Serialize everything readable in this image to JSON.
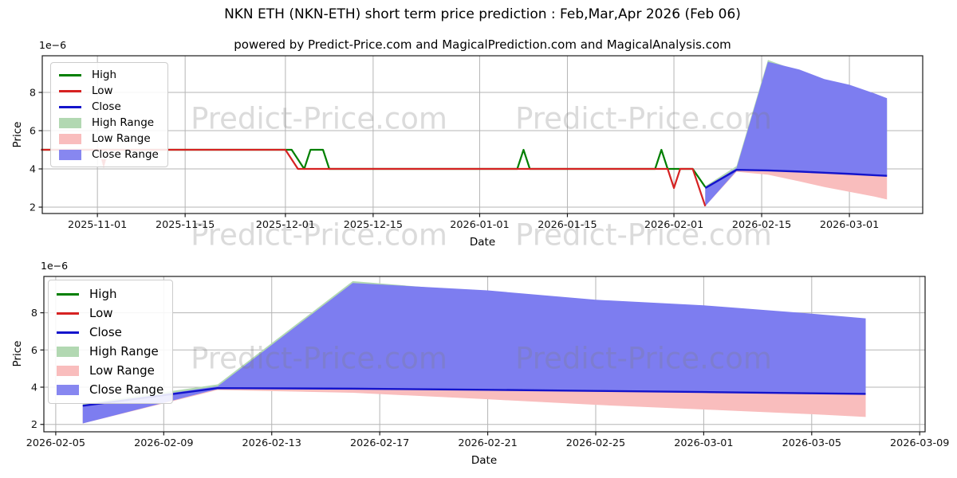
{
  "app": {
    "title": "NKN ETH (NKN-ETH) short term price prediction : Feb,Mar,Apr 2026 (Feb 06)",
    "subtitle": "powered by Predict-Price.com and MagicalPrediction.com and MagicalAnalysis.com",
    "watermark_text": "Predict-Price.com"
  },
  "colors": {
    "high_line": "#007f00",
    "low_line": "#d62222",
    "close_line": "#1414cc",
    "high_range_fill": "#b2d8b2",
    "low_range_fill": "#f9bdbd",
    "close_range_fill": "#7d7df0",
    "grid": "#b5b5b5",
    "spine": "#1a1a1a",
    "tick_label": "#111111",
    "watermark": "#7f7f7f",
    "annotation_pink": "#f5b6ba"
  },
  "legend": {
    "items": [
      {
        "label": "High",
        "swatch": "line",
        "color": "#007f00"
      },
      {
        "label": "Low",
        "swatch": "line",
        "color": "#d62222"
      },
      {
        "label": "Close",
        "swatch": "line",
        "color": "#1414cc"
      },
      {
        "label": "High Range",
        "swatch": "patch",
        "color": "#b2d8b2"
      },
      {
        "label": "Low Range",
        "swatch": "patch",
        "color": "#f9bdbd"
      },
      {
        "label": "Close Range",
        "swatch": "patch",
        "color": "#8787f0"
      }
    ]
  },
  "prediction": {
    "unit": "1e-6",
    "dates": [
      "2026-02-06",
      "2026-02-11",
      "2026-02-16",
      "2026-02-21",
      "2026-02-25",
      "2026-03-01",
      "2026-03-05",
      "2026-03-07"
    ],
    "close": [
      3.0,
      3.95,
      3.92,
      3.86,
      3.8,
      3.74,
      3.67,
      3.64
    ],
    "close_range_low": [
      2.05,
      3.9,
      3.9,
      3.84,
      3.78,
      3.72,
      3.65,
      3.62
    ],
    "close_range_high": [
      3.0,
      4.05,
      9.6,
      9.2,
      8.7,
      8.4,
      7.95,
      7.7
    ],
    "low_range_low": [
      2.05,
      3.85,
      3.7,
      3.35,
      3.05,
      2.8,
      2.55,
      2.4
    ],
    "low_range_high": [
      3.0,
      3.95,
      3.92,
      3.86,
      3.8,
      3.74,
      3.67,
      3.64
    ],
    "high_range_low": [
      2.1,
      3.95,
      3.95,
      3.88,
      3.82,
      3.76,
      3.7,
      3.66
    ],
    "high_range_high": [
      3.1,
      4.15,
      9.7,
      9.1,
      8.6,
      8.32,
      7.88,
      7.58
    ]
  },
  "chart_data": [
    {
      "id": "history-and-prediction",
      "type": "line",
      "ylabel": "Price",
      "xlabel": "Date",
      "offset_label": "1e−6",
      "grid": true,
      "legend_position": "upper-left",
      "ylim": [
        1.667,
        9.917
      ],
      "yticks": [
        2,
        4,
        6,
        8
      ],
      "x0": "2025-11-01",
      "xmin_days": -8.8,
      "xmax_days": 131.7,
      "xticks": [
        "2025-11-01",
        "2025-11-15",
        "2025-12-01",
        "2025-12-15",
        "2026-01-01",
        "2026-01-15",
        "2026-02-01",
        "2026-02-15",
        "2026-03-01"
      ],
      "history_high": [
        [
          "2025-10-23",
          5.0
        ],
        [
          "2025-12-02",
          5.0
        ],
        [
          "2025-12-04",
          4.0
        ],
        [
          "2025-12-05",
          5.0
        ],
        [
          "2025-12-07",
          5.0
        ],
        [
          "2025-12-08",
          4.0
        ],
        [
          "2026-01-07",
          4.0
        ],
        [
          "2026-01-08",
          5.0
        ],
        [
          "2026-01-09",
          4.0
        ],
        [
          "2026-01-29",
          4.0
        ],
        [
          "2026-01-30",
          5.0
        ],
        [
          "2026-01-31",
          4.0
        ],
        [
          "2026-02-04",
          4.0
        ],
        [
          "2026-02-06",
          3.05
        ]
      ],
      "history_low": [
        [
          "2025-10-23",
          5.0
        ],
        [
          "2025-12-01",
          5.0
        ],
        [
          "2025-12-03",
          4.0
        ],
        [
          "2026-01-31",
          4.0
        ],
        [
          "2026-02-01",
          3.0
        ],
        [
          "2026-02-02",
          4.0
        ],
        [
          "2026-02-04",
          4.0
        ],
        [
          "2026-02-06",
          2.05
        ]
      ],
      "annotation": {
        "name": "low-dip-arrow",
        "date": "2025-11-02",
        "top": 5.0,
        "tip": 4.05
      },
      "show_prediction": true
    },
    {
      "id": "prediction-zoom",
      "type": "line",
      "ylabel": "Price",
      "xlabel": "Date",
      "offset_label": "1e−6",
      "grid": true,
      "legend_position": "upper-left",
      "ylim": [
        1.602,
        9.952
      ],
      "yticks": [
        2,
        4,
        6,
        8
      ],
      "x0": "2026-02-05",
      "xmin_days": -0.44,
      "xmax_days": 32.2,
      "xticks": [
        "2026-02-05",
        "2026-02-09",
        "2026-02-13",
        "2026-02-17",
        "2026-02-21",
        "2026-02-25",
        "2026-03-01",
        "2026-03-05",
        "2026-03-09"
      ],
      "history_high": null,
      "history_low": null,
      "annotation": null,
      "show_prediction": true
    }
  ]
}
